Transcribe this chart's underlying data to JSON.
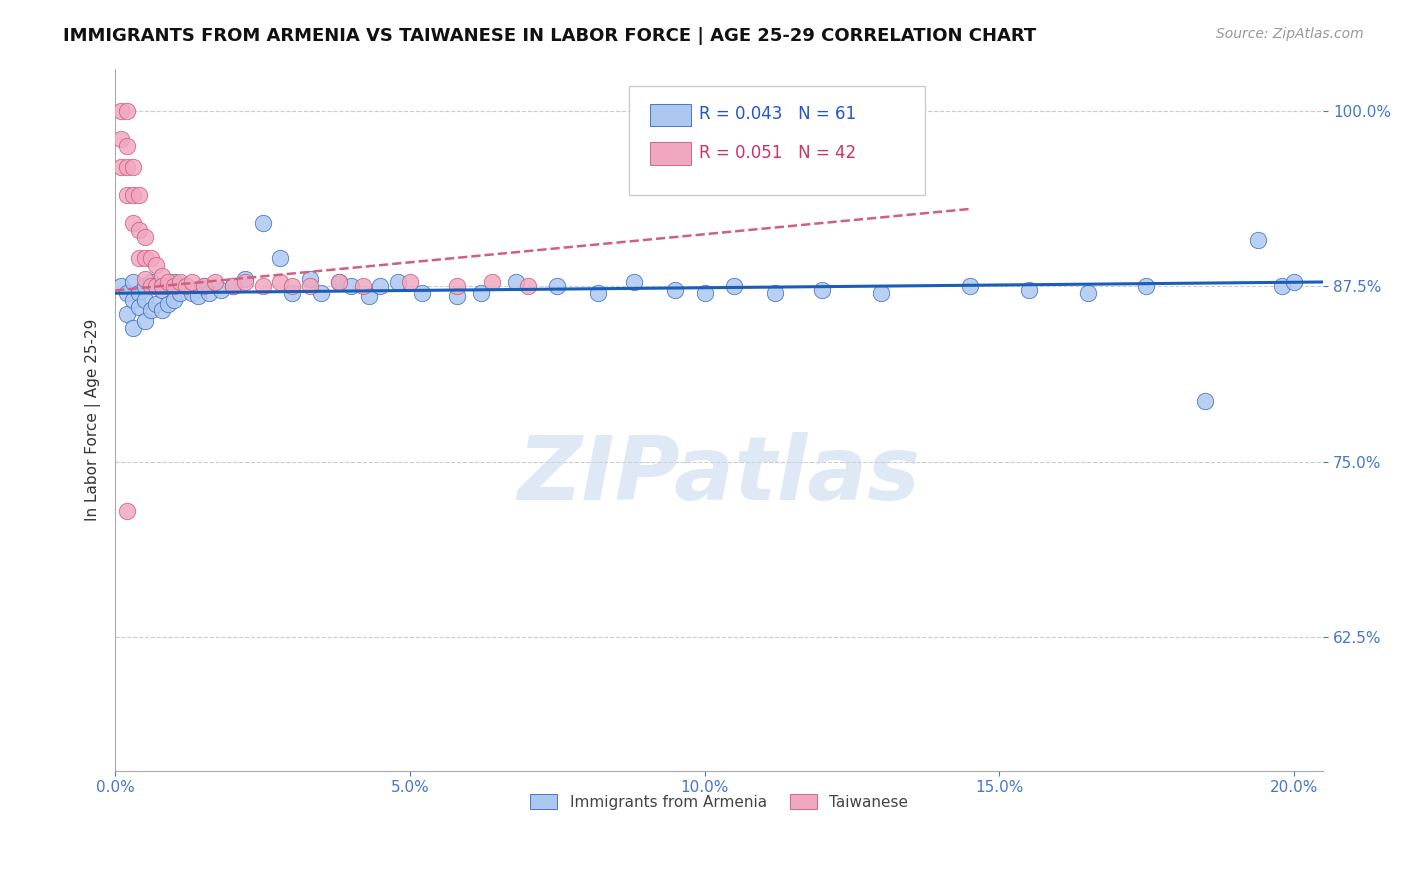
{
  "title": "IMMIGRANTS FROM ARMENIA VS TAIWANESE IN LABOR FORCE | AGE 25-29 CORRELATION CHART",
  "source": "Source: ZipAtlas.com",
  "ylabel": "In Labor Force | Age 25-29",
  "xlim": [
    0.0,
    0.205
  ],
  "ylim": [
    0.53,
    1.03
  ],
  "xticks": [
    0.0,
    0.05,
    0.1,
    0.15,
    0.2
  ],
  "xticklabels": [
    "0.0%",
    "5.0%",
    "10.0%",
    "15.0%",
    "20.0%"
  ],
  "yticks": [
    0.625,
    0.75,
    0.875,
    1.0
  ],
  "yticklabels": [
    "62.5%",
    "75.0%",
    "87.5%",
    "100.0%"
  ],
  "legend_blue_R": "0.043",
  "legend_blue_N": "61",
  "legend_pink_R": "0.051",
  "legend_pink_N": "42",
  "blue_color": "#adc8f0",
  "pink_color": "#f0a8c0",
  "blue_edge_color": "#3366bb",
  "pink_edge_color": "#cc5577",
  "blue_line_color": "#1a5eb8",
  "pink_line_color": "#d06080",
  "blue_scatter_x": [
    0.001,
    0.002,
    0.002,
    0.003,
    0.003,
    0.003,
    0.004,
    0.004,
    0.005,
    0.005,
    0.005,
    0.006,
    0.006,
    0.007,
    0.007,
    0.008,
    0.008,
    0.009,
    0.009,
    0.01,
    0.01,
    0.011,
    0.012,
    0.013,
    0.014,
    0.015,
    0.016,
    0.018,
    0.02,
    0.022,
    0.025,
    0.028,
    0.03,
    0.033,
    0.035,
    0.038,
    0.04,
    0.043,
    0.045,
    0.048,
    0.052,
    0.058,
    0.062,
    0.068,
    0.075,
    0.082,
    0.088,
    0.095,
    0.1,
    0.105,
    0.112,
    0.12,
    0.13,
    0.145,
    0.155,
    0.165,
    0.175,
    0.185,
    0.194,
    0.198,
    0.2
  ],
  "blue_scatter_y": [
    0.875,
    0.87,
    0.855,
    0.878,
    0.865,
    0.845,
    0.87,
    0.86,
    0.875,
    0.865,
    0.85,
    0.878,
    0.858,
    0.875,
    0.862,
    0.872,
    0.858,
    0.875,
    0.862,
    0.878,
    0.865,
    0.87,
    0.875,
    0.87,
    0.868,
    0.875,
    0.87,
    0.872,
    0.875,
    0.88,
    0.92,
    0.895,
    0.87,
    0.88,
    0.87,
    0.878,
    0.875,
    0.868,
    0.875,
    0.878,
    0.87,
    0.868,
    0.87,
    0.878,
    0.875,
    0.87,
    0.878,
    0.872,
    0.87,
    0.875,
    0.87,
    0.872,
    0.87,
    0.875,
    0.872,
    0.87,
    0.875,
    0.793,
    0.908,
    0.875,
    0.878
  ],
  "pink_scatter_x": [
    0.001,
    0.001,
    0.001,
    0.002,
    0.002,
    0.002,
    0.002,
    0.003,
    0.003,
    0.003,
    0.004,
    0.004,
    0.004,
    0.005,
    0.005,
    0.005,
    0.006,
    0.006,
    0.007,
    0.007,
    0.008,
    0.008,
    0.009,
    0.01,
    0.011,
    0.012,
    0.013,
    0.015,
    0.017,
    0.02,
    0.022,
    0.025,
    0.028,
    0.03,
    0.033,
    0.038,
    0.042,
    0.05,
    0.058,
    0.064,
    0.07,
    0.002
  ],
  "pink_scatter_y": [
    1.0,
    0.98,
    0.96,
    1.0,
    0.975,
    0.96,
    0.94,
    0.96,
    0.94,
    0.92,
    0.94,
    0.915,
    0.895,
    0.91,
    0.895,
    0.88,
    0.895,
    0.875,
    0.89,
    0.875,
    0.882,
    0.875,
    0.878,
    0.875,
    0.878,
    0.875,
    0.878,
    0.875,
    0.878,
    0.875,
    0.878,
    0.875,
    0.878,
    0.875,
    0.875,
    0.878,
    0.875,
    0.878,
    0.875,
    0.878,
    0.875,
    0.715
  ],
  "blue_trend_x": [
    0.0,
    0.205
  ],
  "blue_trend_y": [
    0.87,
    0.878
  ],
  "pink_trend_x": [
    0.0,
    0.145
  ],
  "pink_trend_y": [
    0.872,
    0.93
  ]
}
